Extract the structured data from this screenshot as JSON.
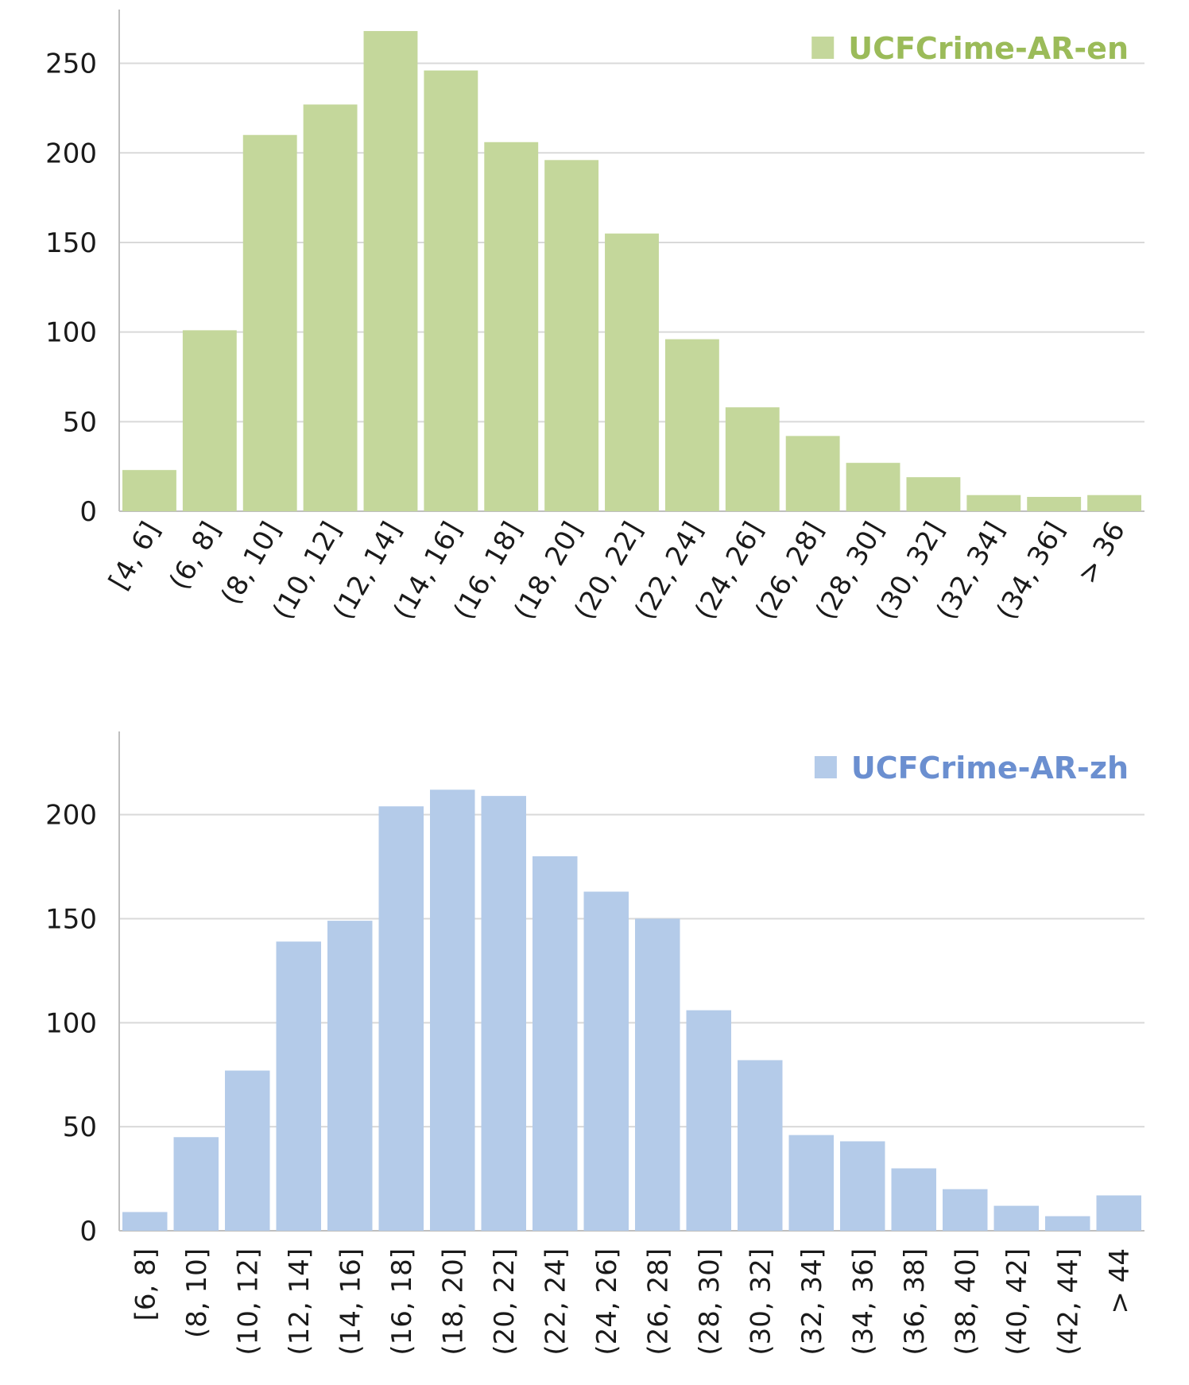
{
  "chart_data": [
    {
      "type": "bar",
      "title": "",
      "xlabel": "",
      "ylabel": "",
      "categories": [
        "[4, 6]",
        "(6, 8]",
        "(8, 10]",
        "(10, 12]",
        "(12, 14]",
        "(14, 16]",
        "(16, 18]",
        "(18, 20]",
        "(20, 22]",
        "(22, 24]",
        "(24, 26]",
        "(26, 28]",
        "(28, 30]",
        "(30, 32]",
        "(32, 34]",
        "(34, 36]",
        "> 36"
      ],
      "series": [
        {
          "name": "UCFCrime-AR-en",
          "values": [
            23,
            101,
            210,
            227,
            268,
            246,
            206,
            196,
            155,
            96,
            58,
            42,
            27,
            19,
            9,
            8,
            9
          ]
        }
      ],
      "ylim": [
        0,
        280
      ],
      "yticks": [
        "0",
        "50",
        "100",
        "150",
        "200",
        "250"
      ],
      "ytick_values": [
        0,
        50,
        100,
        150,
        200,
        250
      ],
      "legend": "top-right",
      "color": "#c4d79b",
      "legend_color": "#9bbb59",
      "tick_rotation": "diagonal"
    },
    {
      "type": "bar",
      "title": "",
      "xlabel": "",
      "ylabel": "",
      "categories": [
        "[6, 8]",
        "(8, 10]",
        "(10, 12]",
        "(12, 14]",
        "(14, 16]",
        "(16, 18]",
        "(18, 20]",
        "(20, 22]",
        "(22, 24]",
        "(24, 26]",
        "(26, 28]",
        "(28, 30]",
        "(30, 32]",
        "(32, 34]",
        "(34, 36]",
        "(36, 38]",
        "(38, 40]",
        "(40, 42]",
        "(42, 44]",
        "> 44"
      ],
      "series": [
        {
          "name": "UCFCrime-AR-zh",
          "values": [
            9,
            45,
            77,
            139,
            149,
            204,
            212,
            209,
            180,
            163,
            150,
            106,
            82,
            46,
            43,
            30,
            20,
            12,
            7,
            17
          ]
        }
      ],
      "ylim": [
        0,
        240
      ],
      "yticks": [
        "0",
        "50",
        "100",
        "150",
        "200"
      ],
      "ytick_values": [
        0,
        50,
        100,
        150,
        200
      ],
      "legend": "top-right",
      "color": "#b4cbe9",
      "legend_color": "#6b8fd0",
      "tick_rotation": "vertical"
    }
  ]
}
